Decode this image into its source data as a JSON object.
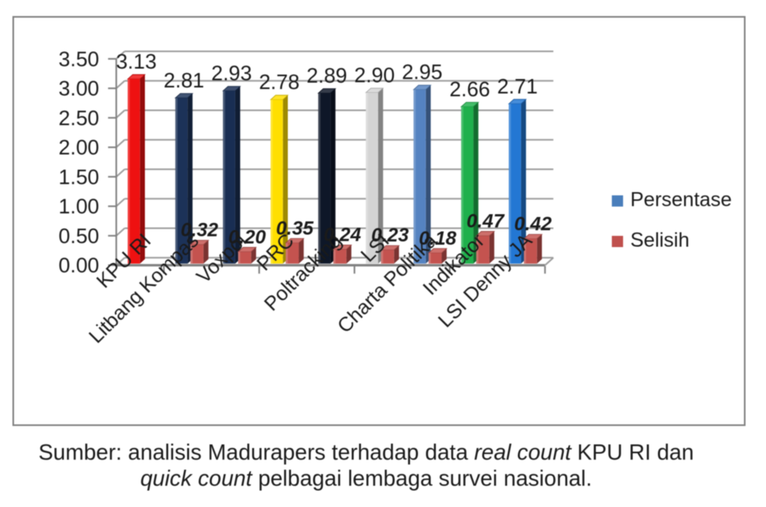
{
  "chart_data": {
    "type": "bar",
    "style": "3d-clustered-column",
    "categories": [
      "KPU RI",
      "Litbang Kompas",
      "Voxpol",
      "PRC",
      "Poltracking",
      "LSI",
      "Charta Politika",
      "Indikator",
      "LSI Denny JA"
    ],
    "series": [
      {
        "name": "Persentase",
        "values": [
          3.13,
          2.81,
          2.93,
          2.78,
          2.89,
          2.9,
          2.95,
          2.66,
          2.71
        ],
        "labels": [
          "3.13",
          "2.81",
          "2.93",
          "2.78",
          "2.89",
          "2.90",
          "2.95",
          "2.66",
          "2.71"
        ],
        "point_colors": [
          "#ee1111",
          "#1c3258",
          "#192e53",
          "#ffdf00",
          "#0e1728",
          "#d4d4d4",
          "#5583c1",
          "#1fb04c",
          "#2377d3"
        ]
      },
      {
        "name": "Selisih",
        "values": [
          null,
          0.32,
          0.2,
          0.35,
          0.24,
          0.23,
          0.18,
          0.47,
          0.42
        ],
        "labels": [
          "",
          "0.32",
          "0.20",
          "0.35",
          "0.24",
          "0.23",
          "0.18",
          "0.47",
          "0.42"
        ],
        "color": "#c4534f"
      }
    ],
    "ylim": [
      0,
      3.5
    ],
    "ytick_step": 0.5,
    "yticks": [
      "0.00",
      "0.50",
      "1.00",
      "1.50",
      "2.00",
      "2.50",
      "3.00",
      "3.50"
    ],
    "grid": true,
    "legend_position": "right"
  },
  "legend": {
    "items": [
      {
        "label": "Persentase",
        "color": "#4a7ebb"
      },
      {
        "label": "Selisih",
        "color": "#c0504d"
      }
    ]
  },
  "caption": {
    "line1_regular": "Sumber: analisis Madurapers terhadap data ",
    "line1_italic": "real count",
    "line1_end": " KPU RI dan",
    "line2_italic": "quick count",
    "line2_end": " pelbagai lembaga survei nasional."
  },
  "colors": {
    "frame_border": "#7f7f7f",
    "gridline": "#9e9e9e",
    "axis_line": "#808080",
    "text": "#1a1a1a",
    "background": "#ffffff"
  }
}
